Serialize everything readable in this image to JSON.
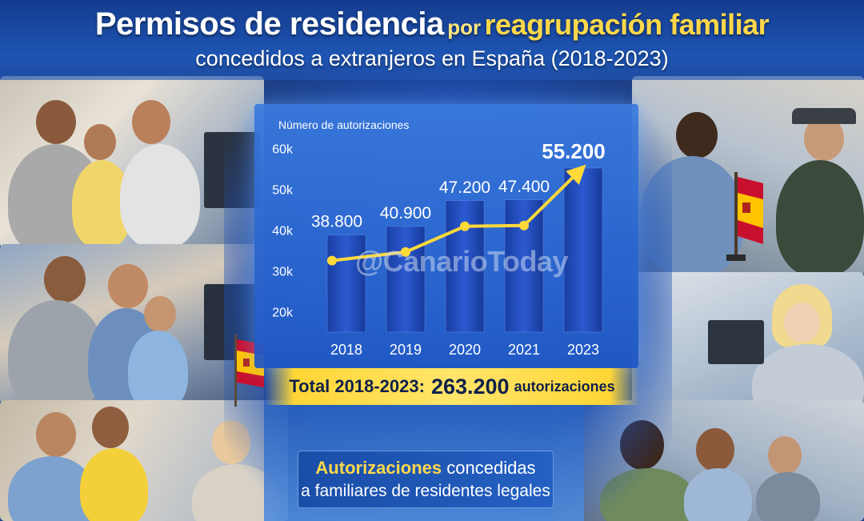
{
  "header": {
    "title_part1": "Permisos de residencia",
    "title_part2": "por",
    "title_part3": "reagrupación familiar",
    "subtitle": "concedidos a extranjeros en España (2018-2023)"
  },
  "chart_data": {
    "type": "bar",
    "title": "Permisos de residencia por reagrupación familiar concedidos a extranjeros en España (2018-2023)",
    "ylabel": "Número de autorizaciones",
    "xlabel": "",
    "ylim": [
      15000,
      65000
    ],
    "yticks": [
      20000,
      30000,
      40000,
      50000,
      60000
    ],
    "ytick_labels": [
      "20k",
      "30k",
      "40k",
      "50k",
      "60k"
    ],
    "categories": [
      "2018",
      "2019",
      "2020",
      "2021",
      "2023"
    ],
    "values": [
      38800,
      40900,
      47200,
      47400,
      55200
    ],
    "value_labels": [
      "38.800",
      "40.900",
      "47.200",
      "47.400",
      "55.200"
    ],
    "trend_line": true,
    "colors": {
      "bar": "#1c47b0",
      "bar_light": "#3a6ee0",
      "trend": "#ffd93a",
      "label": "#ffffff"
    }
  },
  "watermark": "@CanarioToday",
  "total": {
    "label": "Total 2018-2023:",
    "value": "263.200",
    "unit": "autorizaciones"
  },
  "caption": {
    "line1_gold": "Autorizaciones",
    "line1_white": "concedidas",
    "line2": "a familiares de residentes legales"
  }
}
